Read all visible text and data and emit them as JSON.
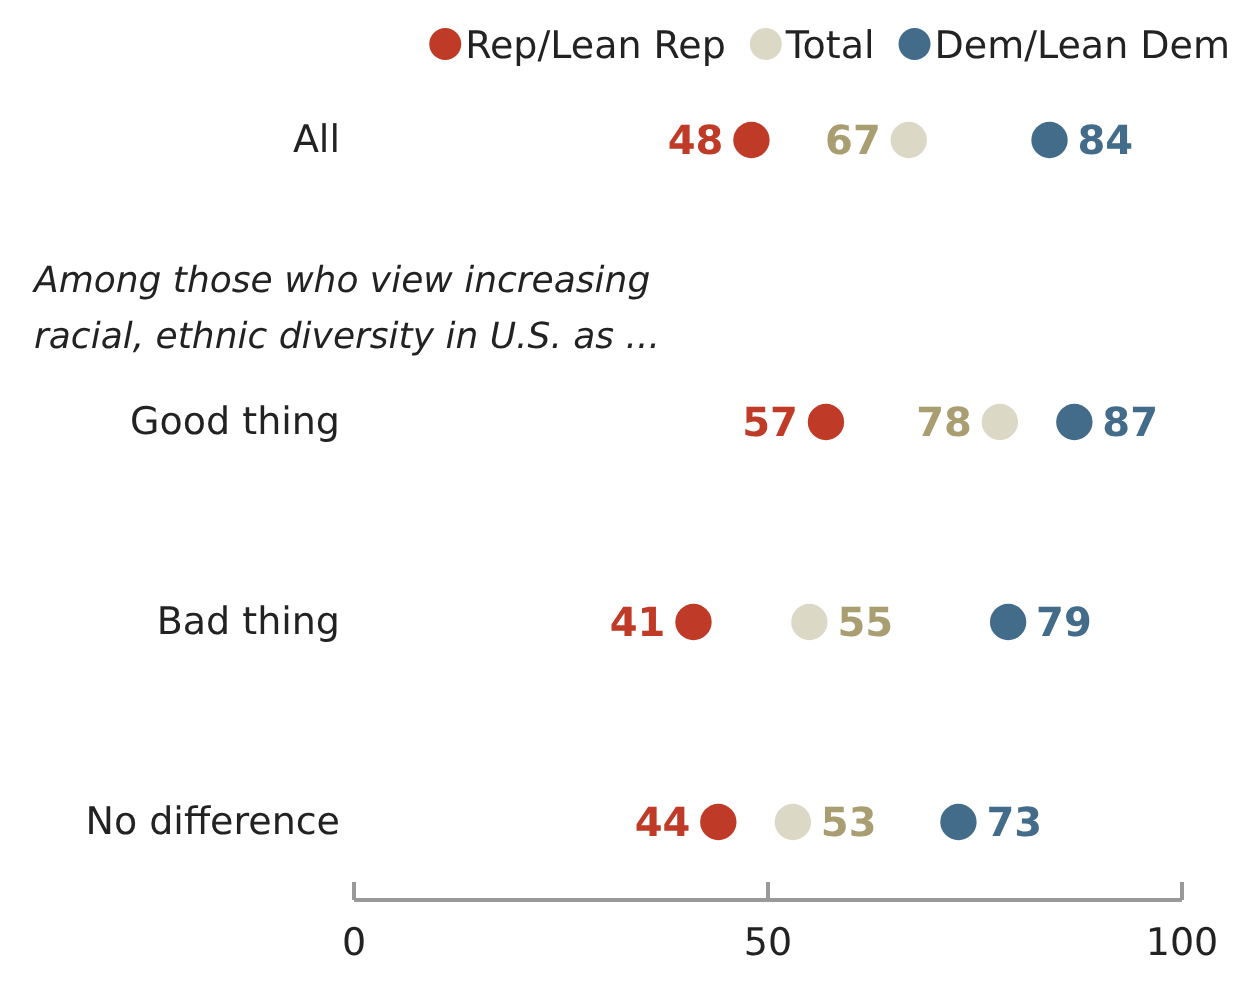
{
  "chart_data": {
    "type": "scatter",
    "orientation": "horizontal",
    "categories": [
      "All",
      "Good thing",
      "Bad thing",
      "No difference"
    ],
    "series": [
      {
        "name": "Rep/Lean Rep",
        "color": "#bf3b27",
        "values": [
          48,
          57,
          41,
          44
        ]
      },
      {
        "name": "Total",
        "color": "#dcd8c6",
        "values": [
          67,
          78,
          55,
          53
        ]
      },
      {
        "name": "Dem/Lean Dem",
        "color": "#436b8a",
        "values": [
          84,
          87,
          79,
          73
        ]
      }
    ],
    "annotations": [
      "Among those who view increasing racial, ethnic diversity in U.S. as ..."
    ],
    "xlim": [
      0,
      100
    ],
    "xticks": [
      0,
      50,
      100
    ],
    "data_labels": true,
    "legend": "top right",
    "marker": "circle",
    "grid": false
  }
}
